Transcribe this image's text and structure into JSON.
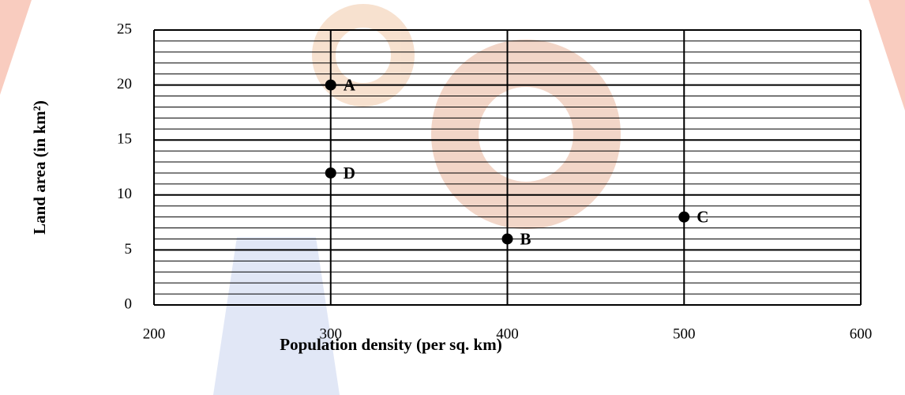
{
  "chart_data": {
    "type": "scatter",
    "x_label": "Population density (per sq. km)",
    "y_label": "Land area (in km²)",
    "x": [
      300,
      400,
      500,
      300
    ],
    "values": [
      20,
      6,
      8,
      12
    ],
    "point_labels": [
      "A",
      "B",
      "C",
      "D"
    ],
    "color": "#000000",
    "xlim": [
      200,
      600
    ],
    "xticks": [
      200,
      300,
      400,
      500,
      600
    ],
    "ylim": [
      0,
      25
    ],
    "yticks": [
      0,
      5,
      10,
      15,
      20,
      25
    ],
    "yminorticks": [
      1,
      2,
      3,
      4,
      6,
      7,
      8,
      9,
      11,
      12,
      13,
      14,
      16,
      17,
      18,
      19,
      21,
      22,
      23,
      24
    ],
    "grid": true
  }
}
